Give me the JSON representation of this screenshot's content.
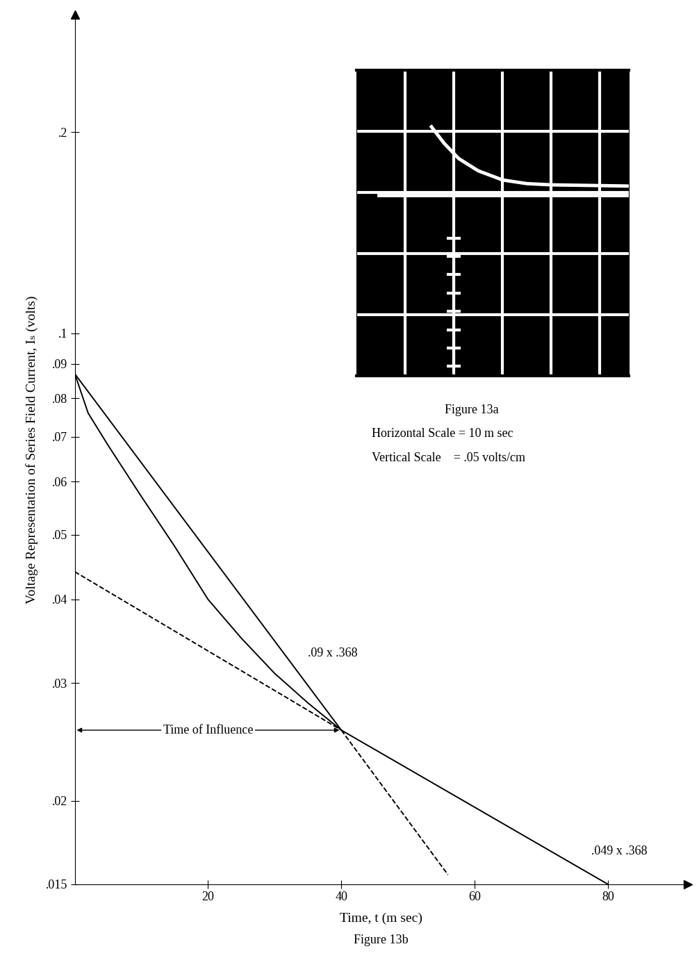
{
  "chart_data": {
    "type": "line",
    "xlabel": "Time, t (m sec)",
    "ylabel": "Voltage Representation of Series Field Current, Iₛ (volts)",
    "caption": "Figure 13b",
    "log": "y",
    "grid": false,
    "xlim": [
      0,
      92
    ],
    "ylim": [
      0.015,
      0.3
    ],
    "xticks": [
      20,
      40,
      60,
      80
    ],
    "yticks": [
      {
        "value": 0.015,
        "label": ".015"
      },
      {
        "value": 0.02,
        "label": ".02"
      },
      {
        "value": 0.03,
        "label": ".03"
      },
      {
        "value": 0.04,
        "label": ".04"
      },
      {
        "value": 0.05,
        "label": ".05"
      },
      {
        "value": 0.06,
        "label": ".06"
      },
      {
        "value": 0.07,
        "label": ".07"
      },
      {
        "value": 0.08,
        "label": ".08"
      },
      {
        "value": 0.09,
        "label": ".09"
      },
      {
        "value": 0.1,
        "label": ".1"
      },
      {
        "value": 0.2,
        "label": ".2"
      }
    ],
    "series": [
      {
        "color": "#000000",
        "line_style": "solid",
        "x": [
          0,
          2,
          5,
          10,
          15,
          20,
          25,
          30,
          35,
          40
        ],
        "values": [
          0.087,
          0.076,
          0.068,
          0.057,
          0.048,
          0.04,
          0.035,
          0.031,
          0.028,
          0.0255
        ]
      },
      {
        "color": "#000000",
        "line_style": "solid",
        "x": [
          0,
          40,
          80
        ],
        "values": [
          0.087,
          0.0255,
          0.015
        ]
      },
      {
        "color": "#000000",
        "line_style": "dashed",
        "x": [
          0,
          40
        ],
        "values": [
          0.044,
          0.0255
        ]
      },
      {
        "color": "#000000",
        "line_style": "dashed",
        "x": [
          40,
          56
        ],
        "values": [
          0.0255,
          0.0155
        ]
      }
    ],
    "annotations": [
      {
        "text": ".09 x .368"
      },
      {
        "text": ".049 x .368"
      }
    ],
    "span": {
      "text": "Time of Influence",
      "x": [
        0,
        40
      ],
      "y": 0.0255
    }
  },
  "inset": {
    "caption": "Figure 13a",
    "notes": [
      "Horizontal Scale = 10 m sec",
      "Vertical Scale    = .05 volts/cm"
    ],
    "xlim": [
      0,
      5.6
    ],
    "ylim": [
      0,
      5
    ],
    "trace": {
      "x": [
        1.54,
        1.8,
        2.1,
        2.5,
        3.0,
        3.5,
        4.0,
        5.6
      ],
      "y": [
        4.07,
        3.8,
        3.55,
        3.35,
        3.2,
        3.14,
        3.12,
        3.1
      ]
    },
    "baseline": {
      "x": [
        0.46,
        5.6
      ],
      "y": [
        2.95,
        2.95
      ]
    },
    "ladder": {
      "x": 2.0,
      "rungs": [
        0.15,
        0.45,
        0.75,
        1.05,
        1.35,
        1.65,
        1.95,
        2.25
      ]
    }
  }
}
